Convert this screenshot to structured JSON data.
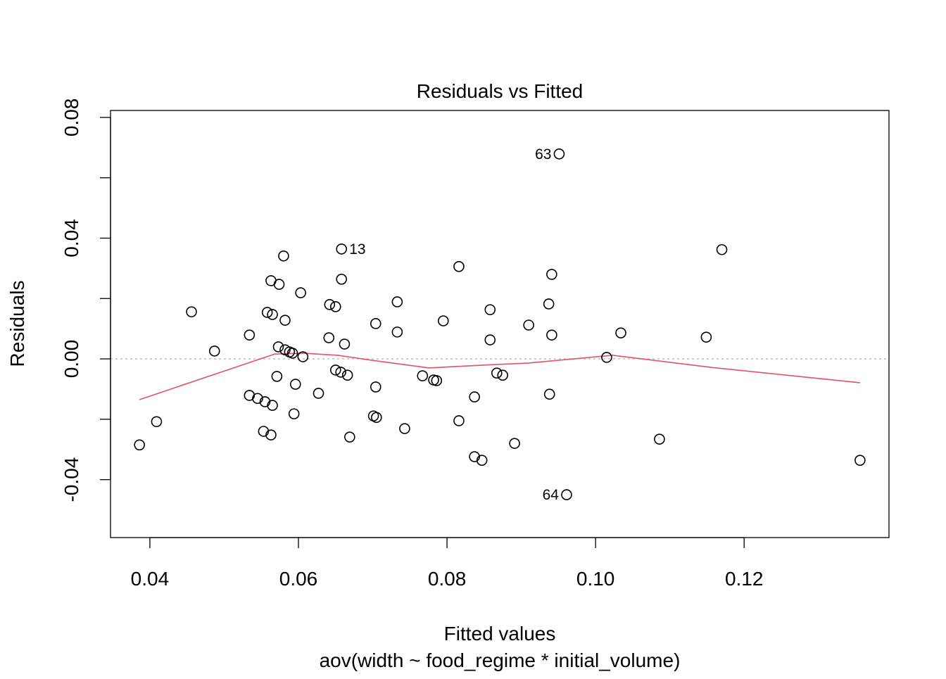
{
  "chart_data": {
    "type": "scatter",
    "title": "Residuals vs Fitted",
    "xlabel": "Fitted values",
    "sublabel": "aov(width ~ food_regime * initial_volume)",
    "ylabel": "Residuals",
    "xlim": [
      0.0347,
      0.1395
    ],
    "ylim": [
      -0.0592,
      0.0823
    ],
    "xticks": [
      0.04,
      0.06,
      0.08,
      0.1,
      0.12
    ],
    "xtick_labels": [
      "0.04",
      "0.06",
      "0.08",
      "0.10",
      "0.12"
    ],
    "yticks": [
      -0.04,
      -0.02,
      0.0,
      0.02,
      0.04,
      0.06,
      0.08
    ],
    "ytick_labels": [
      "-0.04",
      "",
      "0.00",
      "",
      "0.04",
      "",
      "0.08"
    ],
    "reference_line_y": 0,
    "colors": {
      "points": "#000000",
      "smooth": "#DF536B",
      "reference": "#BEBEBE"
    },
    "points": [
      [
        0.0386,
        -0.0285
      ],
      [
        0.0409,
        -0.0208
      ],
      [
        0.0456,
        0.0156
      ],
      [
        0.0487,
        0.0026
      ],
      [
        0.0534,
        0.0079
      ],
      [
        0.0534,
        -0.0121
      ],
      [
        0.0545,
        -0.0131
      ],
      [
        0.0555,
        -0.0142
      ],
      [
        0.0565,
        -0.0154
      ],
      [
        0.0553,
        -0.024
      ],
      [
        0.0563,
        -0.0252
      ],
      [
        0.0558,
        0.0154
      ],
      [
        0.0565,
        0.0147
      ],
      [
        0.0563,
        0.0259
      ],
      [
        0.0574,
        0.0247
      ],
      [
        0.058,
        0.0341
      ],
      [
        0.0582,
        0.0128
      ],
      [
        0.0571,
        -0.0058
      ],
      [
        0.0573,
        0.004
      ],
      [
        0.0582,
        0.003
      ],
      [
        0.0588,
        0.0023
      ],
      [
        0.0592,
        0.0019
      ],
      [
        0.0606,
        0.0007
      ],
      [
        0.0596,
        -0.0084
      ],
      [
        0.0594,
        -0.0182
      ],
      [
        0.0603,
        0.0219
      ],
      [
        0.0627,
        -0.0114
      ],
      [
        0.0642,
        0.018
      ],
      [
        0.065,
        0.0173
      ],
      [
        0.0641,
        0.007
      ],
      [
        0.0658,
        0.0364
      ],
      [
        0.0658,
        0.0264
      ],
      [
        0.0662,
        0.0049
      ],
      [
        0.065,
        -0.0037
      ],
      [
        0.0657,
        -0.0044
      ],
      [
        0.0666,
        -0.0054
      ],
      [
        0.0669,
        -0.0259
      ],
      [
        0.0704,
        0.0117
      ],
      [
        0.0704,
        -0.0093
      ],
      [
        0.0701,
        -0.0189
      ],
      [
        0.0705,
        -0.0194
      ],
      [
        0.0733,
        0.0189
      ],
      [
        0.0733,
        0.0089
      ],
      [
        0.0743,
        -0.0231
      ],
      [
        0.0767,
        -0.0056
      ],
      [
        0.0782,
        -0.007
      ],
      [
        0.0786,
        -0.0072
      ],
      [
        0.0795,
        0.0126
      ],
      [
        0.0816,
        0.0306
      ],
      [
        0.0816,
        -0.0205
      ],
      [
        0.0837,
        -0.0126
      ],
      [
        0.0837,
        -0.0324
      ],
      [
        0.0847,
        -0.0336
      ],
      [
        0.0858,
        0.0163
      ],
      [
        0.0858,
        0.0063
      ],
      [
        0.0867,
        -0.0047
      ],
      [
        0.0875,
        -0.0054
      ],
      [
        0.0891,
        -0.028
      ],
      [
        0.091,
        0.0112
      ],
      [
        0.0937,
        0.0182
      ],
      [
        0.0941,
        0.028
      ],
      [
        0.0941,
        0.0079
      ],
      [
        0.0938,
        -0.0117
      ],
      [
        0.0951,
        0.0679
      ],
      [
        0.0961,
        -0.045
      ],
      [
        0.1015,
        0.0005
      ],
      [
        0.1034,
        0.0086
      ],
      [
        0.1086,
        -0.0266
      ],
      [
        0.1149,
        0.0072
      ],
      [
        0.117,
        0.0362
      ],
      [
        0.1356,
        -0.0336
      ]
    ],
    "labeled_points": [
      {
        "label": "13",
        "x": 0.0658,
        "y": 0.0364,
        "side": "right"
      },
      {
        "label": "63",
        "x": 0.0951,
        "y": 0.0679,
        "side": "left"
      },
      {
        "label": "64",
        "x": 0.0961,
        "y": -0.045,
        "side": "left"
      }
    ],
    "smooth_line": [
      [
        0.0386,
        -0.0135
      ],
      [
        0.0568,
        0.0016
      ],
      [
        0.0606,
        0.0019
      ],
      [
        0.0653,
        0.0012
      ],
      [
        0.07,
        -0.0005
      ],
      [
        0.0776,
        -0.003
      ],
      [
        0.0862,
        -0.0019
      ],
      [
        0.0909,
        -0.0014
      ],
      [
        0.1023,
        0.0012
      ],
      [
        0.1155,
        -0.0028
      ],
      [
        0.1356,
        -0.0079
      ]
    ]
  }
}
